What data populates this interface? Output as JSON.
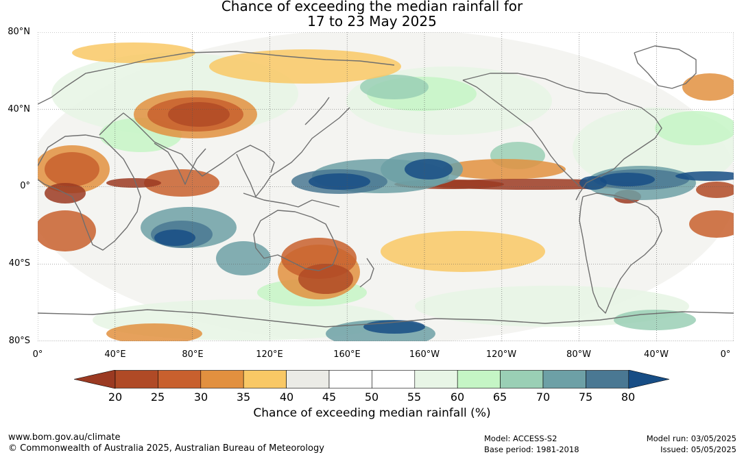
{
  "title": {
    "line1": "Chance of exceeding the median rainfall for",
    "line2": "17 to 23 May 2025"
  },
  "axes": {
    "lat_labels": [
      "80°N",
      "40°N",
      "0°",
      "40°S",
      "80°S"
    ],
    "lon_labels": [
      "0°",
      "40°E",
      "80°E",
      "120°E",
      "160°E",
      "160°W",
      "120°W",
      "80°W",
      "40°W",
      "0°"
    ]
  },
  "colorbar": {
    "label": "Chance of exceeding median rainfall (%)",
    "ticks": [
      "20",
      "25",
      "30",
      "35",
      "40",
      "45",
      "50",
      "55",
      "60",
      "65",
      "70",
      "75",
      "80"
    ],
    "colors": {
      "below20": "#9b3a22",
      "20-25": "#b04a26",
      "25-30": "#c8602e",
      "30-35": "#e2903f",
      "35-40": "#f9c865",
      "40-45": "#ebebe6",
      "45-50": "#ffffff",
      "50-55": "#ffffff",
      "55-60": "#e8f5e6",
      "60-65": "#c5f5c5",
      "65-70": "#9acfb5",
      "70-75": "#6da0a6",
      "75-80": "#4a7893",
      "above80": "#174d85"
    }
  },
  "footer": {
    "url": "www.bom.gov.au/climate",
    "copyright": "© Commonwealth of Australia 2025, Australian Bureau of Meteorology",
    "model": "Model: ACCESS-S2",
    "base_period": "Base period: 1981-2018",
    "model_run": "Model run: 03/05/2025",
    "issued": "Issued: 05/05/2025"
  }
}
